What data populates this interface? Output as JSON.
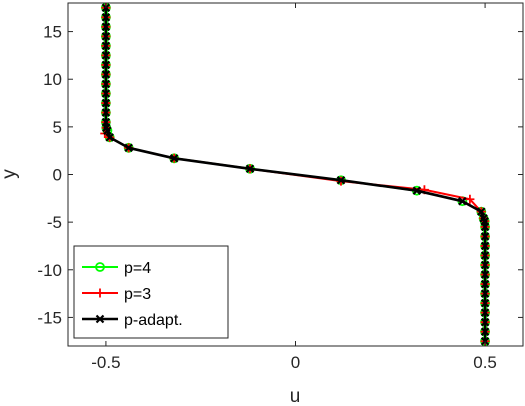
{
  "chart_data": {
    "type": "line",
    "xlabel": "u",
    "ylabel": "y",
    "xlim": [
      -0.6,
      0.6
    ],
    "ylim": [
      -18,
      18
    ],
    "xticks": [
      -0.5,
      0,
      0.5
    ],
    "xtick_labels": [
      "-0.5",
      "0",
      "0.5"
    ],
    "yticks": [
      15,
      10,
      5,
      0,
      -5,
      -10,
      -15
    ],
    "ytick_labels": [
      "15",
      "10",
      "5",
      "0",
      "-5",
      "-10",
      "-15"
    ],
    "grid": false,
    "legend_position": "bottom-left",
    "series": [
      {
        "name": "p=4",
        "color": "#00ff00",
        "marker": "circle",
        "points": [
          [
            -0.5,
            17.5
          ],
          [
            -0.5,
            16.5
          ],
          [
            -0.5,
            15.5
          ],
          [
            -0.5,
            14.5
          ],
          [
            -0.5,
            13.5
          ],
          [
            -0.5,
            12.5
          ],
          [
            -0.5,
            11.5
          ],
          [
            -0.5,
            10.5
          ],
          [
            -0.5,
            9.5
          ],
          [
            -0.5,
            8.5
          ],
          [
            -0.5,
            7.5
          ],
          [
            -0.5,
            6.5
          ],
          [
            -0.5,
            5.5
          ],
          [
            -0.499,
            4.9
          ],
          [
            -0.496,
            4.6
          ],
          [
            -0.49,
            3.9
          ],
          [
            -0.44,
            2.8
          ],
          [
            -0.32,
            1.7
          ],
          [
            -0.12,
            0.6
          ],
          [
            0.12,
            -0.6
          ],
          [
            0.32,
            -1.7
          ],
          [
            0.44,
            -2.8
          ],
          [
            0.49,
            -3.9
          ],
          [
            0.496,
            -4.6
          ],
          [
            0.499,
            -4.9
          ],
          [
            0.5,
            -5.5
          ],
          [
            0.5,
            -6.5
          ],
          [
            0.5,
            -7.5
          ],
          [
            0.5,
            -8.5
          ],
          [
            0.5,
            -9.5
          ],
          [
            0.5,
            -10.5
          ],
          [
            0.5,
            -11.5
          ],
          [
            0.5,
            -12.5
          ],
          [
            0.5,
            -13.5
          ],
          [
            0.5,
            -14.5
          ],
          [
            0.5,
            -15.5
          ],
          [
            0.5,
            -16.5
          ],
          [
            0.5,
            -17.5
          ]
        ]
      },
      {
        "name": "p=3",
        "color": "#ff0000",
        "marker": "plus",
        "points": [
          [
            -0.5,
            17.5
          ],
          [
            -0.5,
            16.5
          ],
          [
            -0.5,
            15.5
          ],
          [
            -0.5,
            14.5
          ],
          [
            -0.5,
            13.5
          ],
          [
            -0.5,
            12.5
          ],
          [
            -0.5,
            11.5
          ],
          [
            -0.5,
            10.5
          ],
          [
            -0.5,
            9.5
          ],
          [
            -0.5,
            8.5
          ],
          [
            -0.5,
            7.5
          ],
          [
            -0.5,
            6.5
          ],
          [
            -0.5,
            5.5
          ],
          [
            -0.499,
            4.9
          ],
          [
            -0.503,
            4.3
          ],
          [
            -0.49,
            3.9
          ],
          [
            -0.44,
            2.8
          ],
          [
            -0.32,
            1.7
          ],
          [
            -0.12,
            0.6
          ],
          [
            0.12,
            -0.7
          ],
          [
            0.34,
            -1.6
          ],
          [
            0.46,
            -2.6
          ],
          [
            0.49,
            -3.9
          ],
          [
            0.496,
            -4.6
          ],
          [
            0.499,
            -4.9
          ],
          [
            0.5,
            -5.5
          ],
          [
            0.5,
            -6.5
          ],
          [
            0.5,
            -7.5
          ],
          [
            0.5,
            -8.5
          ],
          [
            0.5,
            -9.5
          ],
          [
            0.5,
            -10.5
          ],
          [
            0.5,
            -11.5
          ],
          [
            0.5,
            -12.5
          ],
          [
            0.5,
            -13.5
          ],
          [
            0.5,
            -14.5
          ],
          [
            0.5,
            -15.5
          ],
          [
            0.5,
            -16.5
          ],
          [
            0.5,
            -17.5
          ]
        ]
      },
      {
        "name": "p-adapt.",
        "color": "#000000",
        "marker": "x",
        "points": [
          [
            -0.5,
            17.5
          ],
          [
            -0.5,
            16.5
          ],
          [
            -0.5,
            15.5
          ],
          [
            -0.5,
            14.5
          ],
          [
            -0.5,
            13.5
          ],
          [
            -0.5,
            12.5
          ],
          [
            -0.5,
            11.5
          ],
          [
            -0.5,
            10.5
          ],
          [
            -0.5,
            9.5
          ],
          [
            -0.5,
            8.5
          ],
          [
            -0.5,
            7.5
          ],
          [
            -0.5,
            6.5
          ],
          [
            -0.5,
            5.5
          ],
          [
            -0.499,
            4.9
          ],
          [
            -0.496,
            4.6
          ],
          [
            -0.49,
            3.9
          ],
          [
            -0.44,
            2.8
          ],
          [
            -0.32,
            1.7
          ],
          [
            -0.12,
            0.6
          ],
          [
            0.12,
            -0.6
          ],
          [
            0.32,
            -1.7
          ],
          [
            0.44,
            -2.8
          ],
          [
            0.49,
            -3.9
          ],
          [
            0.496,
            -4.6
          ],
          [
            0.499,
            -4.9
          ],
          [
            0.5,
            -5.5
          ],
          [
            0.5,
            -6.5
          ],
          [
            0.5,
            -7.5
          ],
          [
            0.5,
            -8.5
          ],
          [
            0.5,
            -9.5
          ],
          [
            0.5,
            -10.5
          ],
          [
            0.5,
            -11.5
          ],
          [
            0.5,
            -12.5
          ],
          [
            0.5,
            -13.5
          ],
          [
            0.5,
            -14.5
          ],
          [
            0.5,
            -15.5
          ],
          [
            0.5,
            -16.5
          ],
          [
            0.5,
            -17.5
          ]
        ]
      }
    ]
  }
}
